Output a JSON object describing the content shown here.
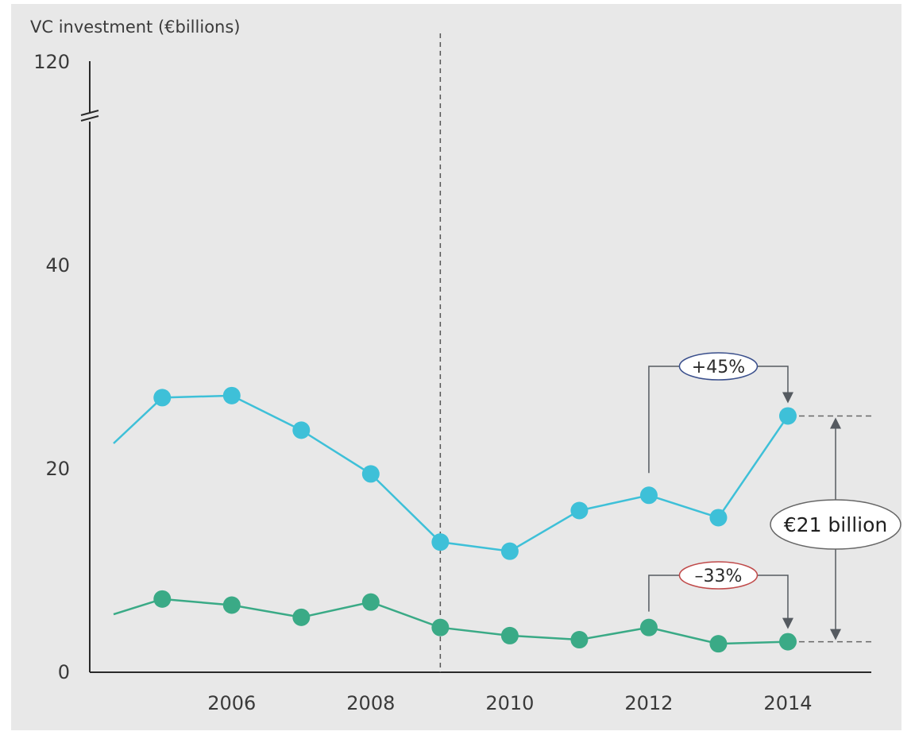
{
  "colors": {
    "series_blue": "#3ec0d8",
    "series_green": "#3aaa86",
    "axis": "#2a2a2a",
    "annotation": "#555a60",
    "callout_up_border": "#3a4f8c",
    "callout_down_border": "#c04a4a",
    "panel_bg": "#e8e8e8"
  },
  "chart_data": {
    "type": "line",
    "title": "VC investment (€billions)",
    "ylim": [
      0,
      120
    ],
    "y_break": true,
    "y_ticks": [
      "0",
      "20",
      "40",
      "120"
    ],
    "x_ticks": [
      "2006",
      "2008",
      "2010",
      "2012",
      "2014"
    ],
    "grid": false,
    "series": [
      {
        "x": [
          2004.3,
          2005,
          2006,
          2007,
          2008,
          2009,
          2010,
          2011,
          2012,
          2013,
          2014
        ],
        "values": [
          22.5,
          27,
          27.2,
          23.8,
          19.5,
          12.8,
          11.9,
          15.9,
          17.4,
          15.2,
          25.2
        ],
        "markers_from_index": 1
      },
      {
        "x": [
          2004.3,
          2005,
          2006,
          2007,
          2008,
          2009,
          2010,
          2011,
          2012,
          2013,
          2014
        ],
        "values": [
          5.7,
          7.2,
          6.6,
          5.4,
          6.9,
          4.4,
          3.6,
          3.2,
          4.4,
          2.8,
          3.0
        ],
        "markers_from_index": 1
      }
    ],
    "reference_line_x": 2009,
    "annotations": {
      "up_change": "+45%",
      "down_change": "–33%",
      "gap_label": "€21 billion"
    }
  }
}
